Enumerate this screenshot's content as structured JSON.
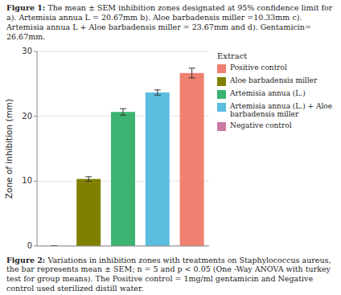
{
  "chart_data": {
    "type": "bar",
    "annotations": [
      "Figure 1: The mean ± SEM inhibition zones designated at 95% confidence limit for a). Artemisia annua L = 20.67mm b). Aloe barbadensis miller =10.33mm c). Artemisia annua L + Aloe barbadensis miller = 23.67mm and d). Gentamicin= 26.67mm.",
      "Figure 2: Variations in inhibition zones with treatments on Staphylococcus aureus, the bar represents mean ± SEM; n = 5 and p < 0.05 (One -Way ANOVA with turkey test for group means). The Positive control = 1mg/ml gentamicin and Negative control used sterilized distill water."
    ],
    "categories": [
      "Negative control",
      "Aloe barbadensis miller",
      "Artemisia annua (L.)",
      "Artemisia annua (L.) + Aloe barbadensis miller",
      "Positive control"
    ],
    "values": [
      0.0,
      10.33,
      20.67,
      23.67,
      26.67
    ],
    "errors": [
      0.05,
      0.35,
      0.5,
      0.4,
      0.75
    ],
    "colors": [
      "#cc79a7",
      "#808000",
      "#3cb371",
      "#5bbde0",
      "#f08070"
    ],
    "legend_title": "Extract",
    "legend_entries": [
      {
        "name": "Positive control",
        "color": "#f08070"
      },
      {
        "name": "Aloe barbadensis miller",
        "color": "#808000"
      },
      {
        "name": "Artemisia annua (L.)",
        "color": "#3cb371"
      },
      {
        "name": "Artemisia annua (L.) +  Aloe barbadensis miller",
        "color": "#5bbde0"
      },
      {
        "name": "Negative control",
        "color": "#cc79a7"
      }
    ],
    "legend": "right",
    "ylabel": "Zone of inhibition (mm)",
    "ylim": [
      0,
      30
    ],
    "yticks": [
      0,
      10,
      20,
      30
    ],
    "grid": true,
    "tick_labels": "y"
  }
}
